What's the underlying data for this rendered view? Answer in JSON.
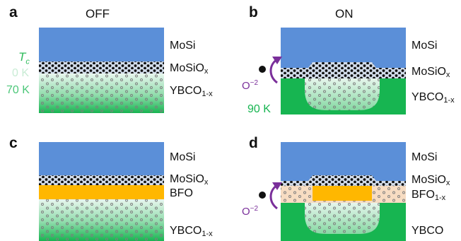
{
  "panels": {
    "a": {
      "letter": "a",
      "title": "OFF"
    },
    "b": {
      "letter": "b",
      "title": "ON"
    },
    "c": {
      "letter": "c"
    },
    "d": {
      "letter": "d"
    }
  },
  "layers": {
    "mosi": "MoSi",
    "mosiox_base": "MoSiO",
    "mosiox_sub": "x",
    "ybco_base": "YBCO",
    "ybco_sub": "1-x",
    "bfo": "BFO",
    "bfo_base": "BFO",
    "bfo_sub": "1-x",
    "ybco_plain": "YBCO"
  },
  "tc_legend": {
    "symbol": "T",
    "sub": "c",
    "low": "0 K",
    "high": "70 K",
    "on_value": "90 K"
  },
  "oxygen": {
    "base": "O",
    "sup": "−2"
  },
  "colors": {
    "mosi": "#5b8fd8",
    "ybco_green": "#17b551",
    "ybco_light": "#dff3e6",
    "bfo": "#ffb700",
    "bfo_light": "#f7dcc2",
    "tc_low": "#c9ecd5",
    "tc_high": "#4cc779",
    "arrow": "#7a2f9a"
  }
}
